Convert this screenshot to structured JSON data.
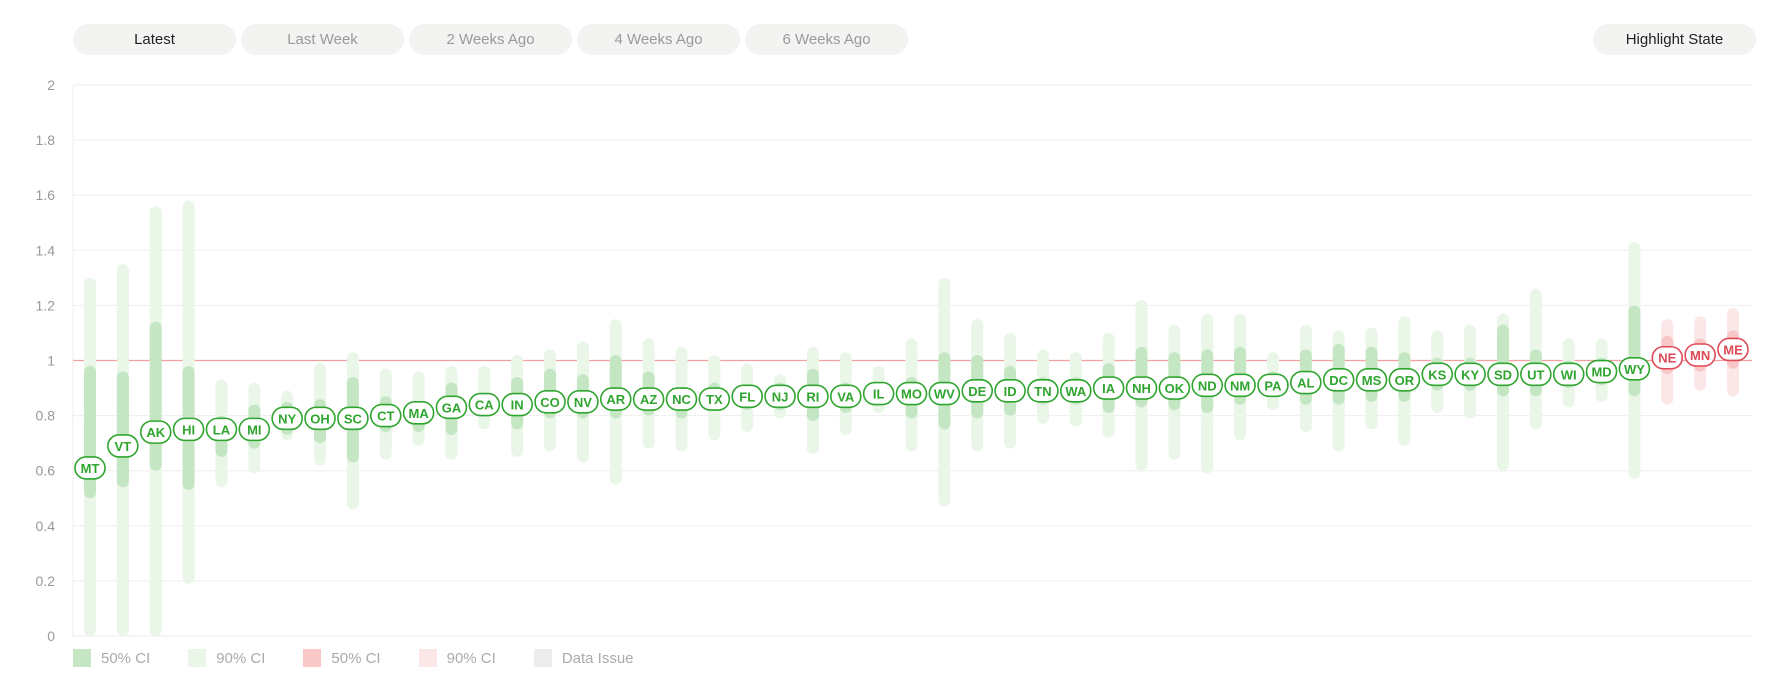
{
  "tabs": [
    {
      "label": "Latest",
      "active": true
    },
    {
      "label": "Last Week",
      "active": false
    },
    {
      "label": "2 Weeks Ago",
      "active": false
    },
    {
      "label": "4 Weeks Ago",
      "active": false
    },
    {
      "label": "6 Weeks Ago",
      "active": false
    }
  ],
  "highlight_button": "Highlight State",
  "legend": [
    {
      "label": "50% CI",
      "color": "#c4e6c3"
    },
    {
      "label": "90% CI",
      "color": "#e9f6e8"
    },
    {
      "label": "50% CI",
      "color": "#f8c7c7"
    },
    {
      "label": "90% CI",
      "color": "#fbe7e8"
    },
    {
      "label": "Data Issue",
      "color": "#ececec"
    }
  ],
  "colors": {
    "below": "#2fa52f",
    "above": "#dd4a55",
    "below_50": "#c4e6c3",
    "below_90": "#e9f6e8",
    "above_50": "#f8c7c7",
    "above_90": "#fbe7e8",
    "refline": "#f2a0a0",
    "grid": "#eeeeee",
    "tick_text": "#999999"
  },
  "chart_data": {
    "type": "scatter",
    "title": "",
    "xlabel": "",
    "ylabel": "",
    "ylim": [
      0,
      2
    ],
    "yticks": [
      "0",
      "0.2",
      "0.4",
      "0.6",
      "0.8",
      "1",
      "1.2",
      "1.4",
      "1.6",
      "1.8",
      "2"
    ],
    "reference_line": 1,
    "grid": true,
    "legend_position": "bottom-left",
    "points": [
      {
        "state": "MT",
        "value": 0.61,
        "ci50": [
          0.5,
          0.98
        ],
        "ci90": [
          0.0,
          1.3
        ]
      },
      {
        "state": "VT",
        "value": 0.69,
        "ci50": [
          0.54,
          0.96
        ],
        "ci90": [
          0.0,
          1.35
        ]
      },
      {
        "state": "AK",
        "value": 0.74,
        "ci50": [
          0.6,
          1.14
        ],
        "ci90": [
          0.0,
          1.56
        ]
      },
      {
        "state": "HI",
        "value": 0.75,
        "ci50": [
          0.53,
          0.98
        ],
        "ci90": [
          0.19,
          1.58
        ]
      },
      {
        "state": "LA",
        "value": 0.75,
        "ci50": [
          0.65,
          0.8
        ],
        "ci90": [
          0.54,
          0.93
        ]
      },
      {
        "state": "MI",
        "value": 0.75,
        "ci50": [
          0.68,
          0.84
        ],
        "ci90": [
          0.59,
          0.92
        ]
      },
      {
        "state": "NY",
        "value": 0.79,
        "ci50": [
          0.73,
          0.85
        ],
        "ci90": [
          0.71,
          0.89
        ]
      },
      {
        "state": "OH",
        "value": 0.79,
        "ci50": [
          0.7,
          0.86
        ],
        "ci90": [
          0.62,
          0.99
        ]
      },
      {
        "state": "SC",
        "value": 0.79,
        "ci50": [
          0.63,
          0.94
        ],
        "ci90": [
          0.46,
          1.03
        ]
      },
      {
        "state": "CT",
        "value": 0.8,
        "ci50": [
          0.74,
          0.87
        ],
        "ci90": [
          0.64,
          0.97
        ]
      },
      {
        "state": "MA",
        "value": 0.81,
        "ci50": [
          0.74,
          0.85
        ],
        "ci90": [
          0.69,
          0.96
        ]
      },
      {
        "state": "GA",
        "value": 0.83,
        "ci50": [
          0.73,
          0.92
        ],
        "ci90": [
          0.64,
          0.98
        ]
      },
      {
        "state": "CA",
        "value": 0.84,
        "ci50": [
          0.8,
          0.87
        ],
        "ci90": [
          0.75,
          0.98
        ]
      },
      {
        "state": "IN",
        "value": 0.84,
        "ci50": [
          0.75,
          0.94
        ],
        "ci90": [
          0.65,
          1.02
        ]
      },
      {
        "state": "CO",
        "value": 0.85,
        "ci50": [
          0.79,
          0.97
        ],
        "ci90": [
          0.67,
          1.04
        ]
      },
      {
        "state": "NV",
        "value": 0.85,
        "ci50": [
          0.79,
          0.95
        ],
        "ci90": [
          0.63,
          1.07
        ]
      },
      {
        "state": "AR",
        "value": 0.86,
        "ci50": [
          0.79,
          1.02
        ],
        "ci90": [
          0.55,
          1.15
        ]
      },
      {
        "state": "AZ",
        "value": 0.86,
        "ci50": [
          0.8,
          0.96
        ],
        "ci90": [
          0.68,
          1.08
        ]
      },
      {
        "state": "NC",
        "value": 0.86,
        "ci50": [
          0.79,
          0.9
        ],
        "ci90": [
          0.67,
          1.05
        ]
      },
      {
        "state": "TX",
        "value": 0.86,
        "ci50": [
          0.82,
          0.92
        ],
        "ci90": [
          0.71,
          1.02
        ]
      },
      {
        "state": "FL",
        "value": 0.87,
        "ci50": [
          0.82,
          0.91
        ],
        "ci90": [
          0.74,
          0.99
        ]
      },
      {
        "state": "NJ",
        "value": 0.87,
        "ci50": [
          0.82,
          0.92
        ],
        "ci90": [
          0.79,
          0.95
        ]
      },
      {
        "state": "RI",
        "value": 0.87,
        "ci50": [
          0.78,
          0.97
        ],
        "ci90": [
          0.66,
          1.05
        ]
      },
      {
        "state": "VA",
        "value": 0.87,
        "ci50": [
          0.81,
          0.92
        ],
        "ci90": [
          0.73,
          1.03
        ]
      },
      {
        "state": "IL",
        "value": 0.88,
        "ci50": [
          0.84,
          0.92
        ],
        "ci90": [
          0.81,
          0.98
        ]
      },
      {
        "state": "MO",
        "value": 0.88,
        "ci50": [
          0.79,
          0.94
        ],
        "ci90": [
          0.67,
          1.08
        ]
      },
      {
        "state": "WV",
        "value": 0.88,
        "ci50": [
          0.75,
          1.03
        ],
        "ci90": [
          0.47,
          1.3
        ]
      },
      {
        "state": "DE",
        "value": 0.89,
        "ci50": [
          0.79,
          1.02
        ],
        "ci90": [
          0.67,
          1.15
        ]
      },
      {
        "state": "ID",
        "value": 0.89,
        "ci50": [
          0.8,
          0.98
        ],
        "ci90": [
          0.68,
          1.1
        ]
      },
      {
        "state": "TN",
        "value": 0.89,
        "ci50": [
          0.84,
          0.94
        ],
        "ci90": [
          0.77,
          1.04
        ]
      },
      {
        "state": "WA",
        "value": 0.89,
        "ci50": [
          0.84,
          0.94
        ],
        "ci90": [
          0.76,
          1.03
        ]
      },
      {
        "state": "IA",
        "value": 0.9,
        "ci50": [
          0.81,
          0.99
        ],
        "ci90": [
          0.72,
          1.1
        ]
      },
      {
        "state": "NH",
        "value": 0.9,
        "ci50": [
          0.83,
          1.05
        ],
        "ci90": [
          0.6,
          1.22
        ]
      },
      {
        "state": "OK",
        "value": 0.9,
        "ci50": [
          0.82,
          1.03
        ],
        "ci90": [
          0.64,
          1.13
        ]
      },
      {
        "state": "ND",
        "value": 0.91,
        "ci50": [
          0.81,
          1.04
        ],
        "ci90": [
          0.59,
          1.17
        ]
      },
      {
        "state": "NM",
        "value": 0.91,
        "ci50": [
          0.84,
          1.05
        ],
        "ci90": [
          0.71,
          1.17
        ]
      },
      {
        "state": "PA",
        "value": 0.91,
        "ci50": [
          0.87,
          0.96
        ],
        "ci90": [
          0.82,
          1.03
        ]
      },
      {
        "state": "AL",
        "value": 0.92,
        "ci50": [
          0.84,
          1.04
        ],
        "ci90": [
          0.74,
          1.13
        ]
      },
      {
        "state": "DC",
        "value": 0.93,
        "ci50": [
          0.84,
          1.06
        ],
        "ci90": [
          0.67,
          1.11
        ]
      },
      {
        "state": "MS",
        "value": 0.93,
        "ci50": [
          0.85,
          1.05
        ],
        "ci90": [
          0.75,
          1.12
        ]
      },
      {
        "state": "OR",
        "value": 0.93,
        "ci50": [
          0.85,
          1.03
        ],
        "ci90": [
          0.69,
          1.16
        ]
      },
      {
        "state": "KS",
        "value": 0.95,
        "ci50": [
          0.89,
          1.01
        ],
        "ci90": [
          0.81,
          1.11
        ]
      },
      {
        "state": "KY",
        "value": 0.95,
        "ci50": [
          0.89,
          1.01
        ],
        "ci90": [
          0.79,
          1.13
        ]
      },
      {
        "state": "SD",
        "value": 0.95,
        "ci50": [
          0.87,
          1.13
        ],
        "ci90": [
          0.6,
          1.17
        ]
      },
      {
        "state": "UT",
        "value": 0.95,
        "ci50": [
          0.87,
          1.04
        ],
        "ci90": [
          0.75,
          1.26
        ]
      },
      {
        "state": "WI",
        "value": 0.95,
        "ci50": [
          0.9,
          1.0
        ],
        "ci90": [
          0.83,
          1.08
        ]
      },
      {
        "state": "MD",
        "value": 0.96,
        "ci50": [
          0.91,
          1.01
        ],
        "ci90": [
          0.85,
          1.08
        ]
      },
      {
        "state": "WY",
        "value": 0.97,
        "ci50": [
          0.87,
          1.2
        ],
        "ci90": [
          0.57,
          1.43
        ]
      },
      {
        "state": "NE",
        "value": 1.01,
        "ci50": [
          0.95,
          1.09
        ],
        "ci90": [
          0.84,
          1.15
        ]
      },
      {
        "state": "MN",
        "value": 1.02,
        "ci50": [
          0.96,
          1.08
        ],
        "ci90": [
          0.89,
          1.16
        ]
      },
      {
        "state": "ME",
        "value": 1.04,
        "ci50": [
          0.97,
          1.11
        ],
        "ci90": [
          0.87,
          1.19
        ]
      }
    ]
  }
}
